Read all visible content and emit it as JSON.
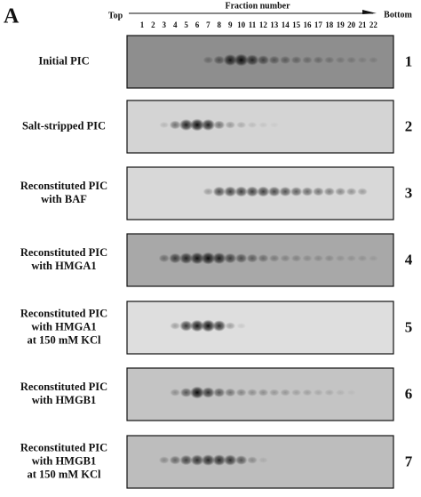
{
  "panel_label": "A",
  "header": {
    "top": "Top",
    "title": "Fraction number",
    "bottom": "Bottom",
    "fractions": [
      "1",
      "2",
      "3",
      "4",
      "5",
      "6",
      "7",
      "8",
      "9",
      "10",
      "11",
      "12",
      "13",
      "14",
      "15",
      "16",
      "17",
      "18",
      "19",
      "20",
      "21",
      "22"
    ]
  },
  "rows": [
    {
      "label_lines": [
        "Initial PIC"
      ],
      "number": "1"
    },
    {
      "label_lines": [
        "Salt-stripped PIC"
      ],
      "number": "2"
    },
    {
      "label_lines": [
        "Reconstituted PIC",
        "with BAF"
      ],
      "number": "3"
    },
    {
      "label_lines": [
        "Reconstituted PIC",
        "with HMGA1"
      ],
      "number": "4"
    },
    {
      "label_lines": [
        "Reconstituted PIC",
        "with HMGA1",
        "at 150 mM KCl"
      ],
      "number": "5"
    },
    {
      "label_lines": [
        "Reconstituted PIC",
        "with HMGB1"
      ],
      "number": "6"
    },
    {
      "label_lines": [
        "Reconstituted PIC",
        "with HMGB1",
        "at 150 mM KCl"
      ],
      "number": "7"
    }
  ]
}
